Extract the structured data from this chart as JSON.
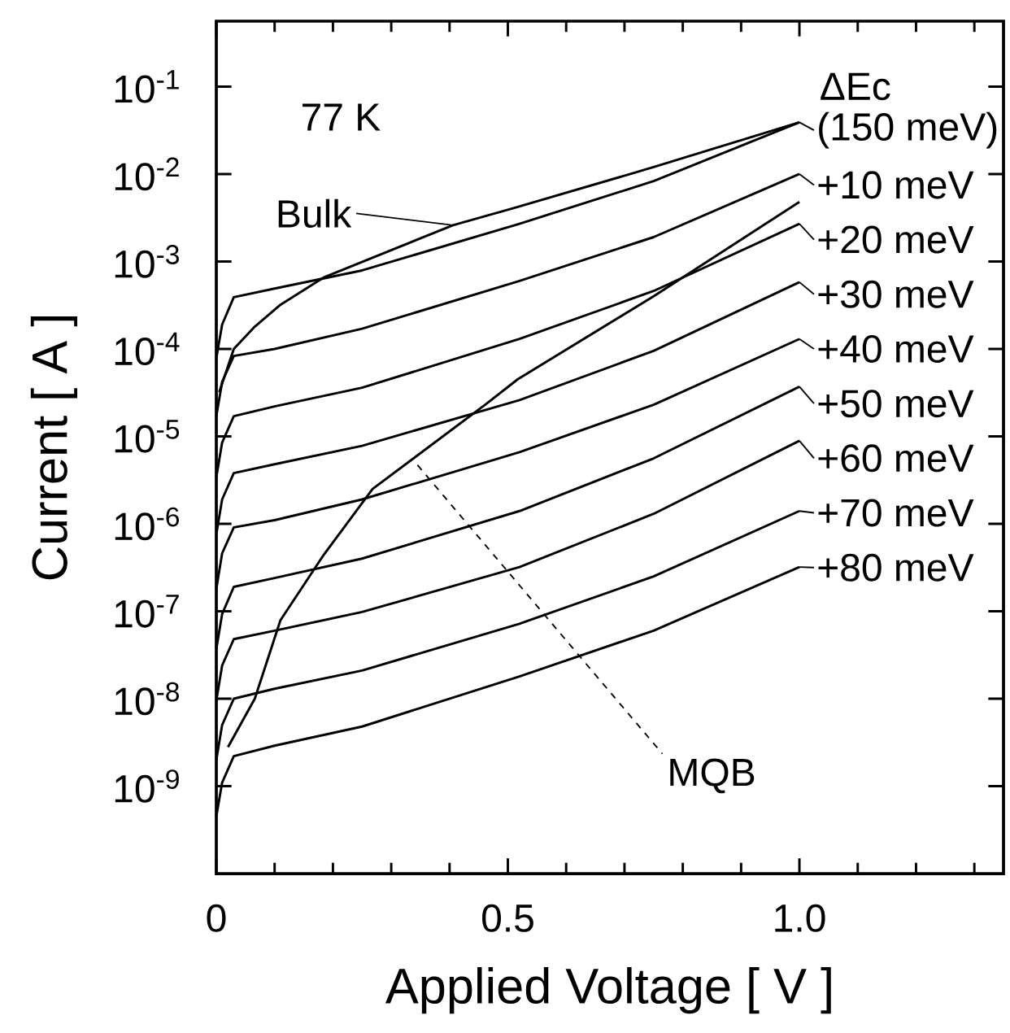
{
  "chart_data": {
    "type": "line",
    "xlabel": "Applied Voltage [ V ]",
    "ylabel": "Current  [ A ]",
    "log": "y",
    "marker": "none",
    "line_style": "solid",
    "grid": false,
    "legend": "right",
    "xlim": [
      0,
      1.35
    ],
    "ylim": [
      1e-10,
      0.56
    ],
    "xticks": [
      0,
      {
        "value": 0.1,
        "label": null
      },
      {
        "value": 0.2,
        "label": null
      },
      {
        "value": 0.3,
        "label": null
      },
      {
        "value": 0.4,
        "label": null
      },
      0.5,
      {
        "value": 0.6,
        "label": null
      },
      {
        "value": 0.7,
        "label": null
      },
      {
        "value": 0.8,
        "label": null
      },
      {
        "value": 0.9,
        "label": null
      },
      {
        "value": 1.0,
        "label": "1.0"
      },
      {
        "value": 1.1,
        "label": null
      },
      {
        "value": 1.2,
        "label": null
      },
      {
        "value": 1.3,
        "label": null
      }
    ],
    "yticks": [
      {
        "value": 0.1,
        "label": "10$^{-1}$"
      },
      {
        "value": 0.01,
        "label": "10$^{-2}$"
      },
      {
        "value": 0.001,
        "label": "10$^{-3}$"
      },
      {
        "value": 0.0001,
        "label": "10$^{-4}$"
      },
      {
        "value": 1e-05,
        "label": "10$^{-5}$"
      },
      {
        "value": 1e-06,
        "label": "10$^{-6}$"
      },
      {
        "value": 1e-07,
        "label": "10$^{-7}$"
      },
      {
        "value": 1e-08,
        "label": "10$^{-8}$"
      },
      {
        "value": 1e-09,
        "label": "10$^{-9}$"
      }
    ],
    "annotations": [
      "77 K",
      "ΔEc",
      {
        "text": "Bulk",
        "x": 0.406,
        "y": 0.0026
      },
      {
        "text": "MQB",
        "x": 0.345,
        "y": 4.7e-06
      }
    ],
    "series": [
      {
        "name": "(150 meV)",
        "color": "#000000",
        "x": [
          0,
          0.01,
          0.03,
          0.1,
          0.25,
          0.52,
          0.75,
          1.0
        ],
        "values": [
          7.8e-05,
          0.00019,
          0.00039,
          0.00049,
          0.00079,
          0.0027,
          0.0083,
          0.039
        ]
      },
      {
        "name": "+10 meV",
        "color": "#000000",
        "x": [
          0,
          0.01,
          0.03,
          0.1,
          0.25,
          0.52,
          0.75,
          1.0
        ],
        "values": [
          1.7e-05,
          4.2e-05,
          8.3e-05,
          0.0001,
          0.00017,
          0.0006,
          0.0019,
          0.01
        ]
      },
      {
        "name": "+20 meV",
        "color": "#000000",
        "x": [
          0,
          0.01,
          0.03,
          0.1,
          0.25,
          0.52,
          0.75,
          1.0
        ],
        "values": [
          3.4e-06,
          8.5e-06,
          1.7e-05,
          2.2e-05,
          3.6e-05,
          0.00013,
          0.00046,
          0.0027
        ]
      },
      {
        "name": "+30 meV",
        "color": "#000000",
        "x": [
          0,
          0.01,
          0.03,
          0.1,
          0.25,
          0.52,
          0.75,
          1.0
        ],
        "values": [
          7.6e-07,
          1.9e-06,
          3.8e-06,
          4.8e-06,
          7.8e-06,
          2.6e-05,
          9.5e-05,
          0.00058
        ]
      },
      {
        "name": "+40 meV",
        "color": "#000000",
        "x": [
          0,
          0.01,
          0.03,
          0.1,
          0.25,
          0.52,
          0.75,
          1.0
        ],
        "values": [
          1.8e-07,
          4.6e-07,
          9.1e-07,
          1.1e-06,
          1.9e-06,
          6.6e-06,
          2.3e-05,
          0.00013
        ]
      },
      {
        "name": "+50 meV",
        "color": "#000000",
        "x": [
          0,
          0.01,
          0.03,
          0.1,
          0.25,
          0.52,
          0.75,
          1.0
        ],
        "values": [
          3.7e-08,
          9.3e-08,
          1.9e-07,
          2.4e-07,
          4e-07,
          1.4e-06,
          5.6e-06,
          3.7e-05
        ]
      },
      {
        "name": "+60 meV",
        "color": "#000000",
        "x": [
          0,
          0.01,
          0.03,
          0.1,
          0.25,
          0.52,
          0.75,
          1.0
        ],
        "values": [
          9.5e-09,
          2.4e-08,
          4.8e-08,
          6e-08,
          9.8e-08,
          3.2e-07,
          1.3e-06,
          8.9e-06
        ]
      },
      {
        "name": "+70 meV",
        "color": "#000000",
        "x": [
          0,
          0.01,
          0.03,
          0.1,
          0.25,
          0.52,
          0.75,
          1.0
        ],
        "values": [
          2e-09,
          5e-09,
          1e-08,
          1.3e-08,
          2.1e-08,
          7.2e-08,
          2.5e-07,
          1.4e-06
        ]
      },
      {
        "name": "+80 meV",
        "color": "#000000",
        "x": [
          0,
          0.01,
          0.03,
          0.1,
          0.25,
          0.52,
          0.75,
          1.0
        ],
        "values": [
          4.5e-10,
          1.1e-09,
          2.2e-09,
          2.9e-09,
          4.8e-09,
          1.8e-08,
          6e-08,
          3.2e-07
        ]
      },
      {
        "color": "#000000",
        "x": [
          0.005,
          0.03,
          0.066,
          0.11,
          0.185,
          0.406,
          0.517,
          0.75,
          1.0
        ],
        "values": [
          3.2e-05,
          0.0001,
          0.00018,
          0.00032,
          0.00066,
          0.0026,
          0.0042,
          0.012,
          0.039
        ]
      },
      {
        "color": "#000000",
        "x": [
          0.02,
          0.066,
          0.11,
          0.185,
          0.268,
          0.461,
          0.517,
          0.75,
          1.0
        ],
        "values": [
          2.8e-09,
          1e-08,
          7.9e-08,
          4.5e-07,
          2.5e-06,
          2.3e-05,
          4.5e-05,
          0.0004,
          0.0048
        ]
      }
    ]
  }
}
